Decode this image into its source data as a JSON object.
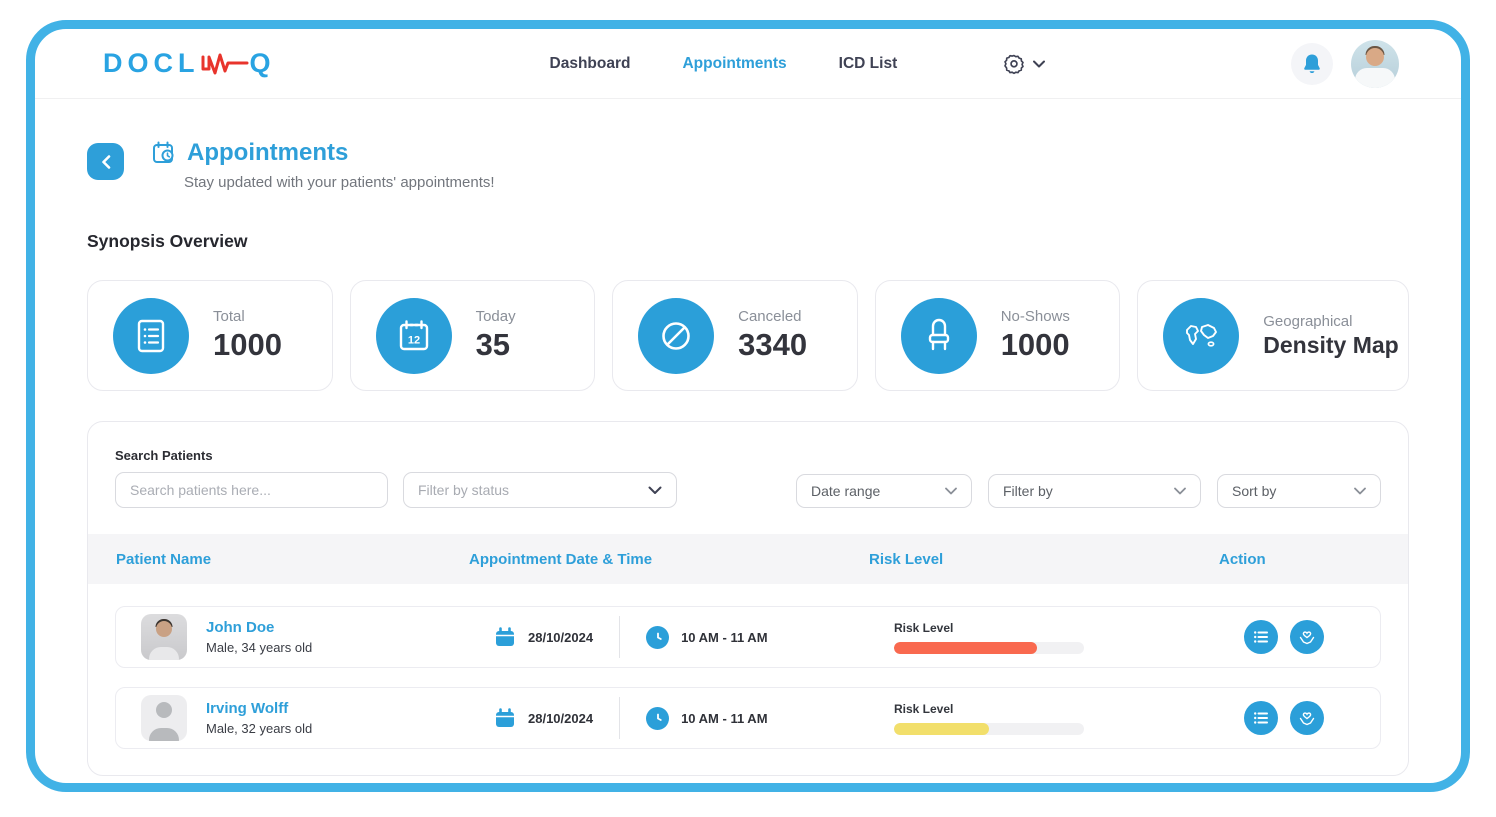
{
  "brand": {
    "name": "DOCLINQ",
    "logo_left": "DOCL",
    "logo_right": "Q"
  },
  "nav": {
    "items": [
      {
        "label": "Dashboard",
        "active": false
      },
      {
        "label": "Appointments",
        "active": true
      },
      {
        "label": "ICD List",
        "active": false
      }
    ]
  },
  "page": {
    "title": "Appointments",
    "subtitle": "Stay updated with your patients' appointments!"
  },
  "synopsis": {
    "heading": "Synopsis Overview",
    "cards": [
      {
        "label": "Total",
        "value": "1000",
        "icon": "list-document-icon"
      },
      {
        "label": "Today",
        "value": "35",
        "icon": "calendar-12-icon"
      },
      {
        "label": "Canceled",
        "value": "3340",
        "icon": "ban-icon"
      },
      {
        "label": "No-Shows",
        "value": "1000",
        "icon": "chair-icon"
      },
      {
        "label": "Geographical",
        "value": "Density Map",
        "icon": "world-map-icon"
      }
    ]
  },
  "filters": {
    "search_label": "Search Patients",
    "search_placeholder": "Search patients here...",
    "status_placeholder": "Filter by status",
    "date_range_label": "Date range",
    "filter_by_label": "Filter by",
    "sort_by_label": "Sort by"
  },
  "table": {
    "headers": [
      "Patient Name",
      "Appointment Date & Time",
      "Risk Level",
      "Action"
    ],
    "risk_label": "Risk Level",
    "rows": [
      {
        "name": "John Doe",
        "details": "Male, 34 years old",
        "date": "28/10/2024",
        "time": "10 AM - 11 AM",
        "risk_percent": 75,
        "risk_color": "#F9694F"
      },
      {
        "name": "Irving Wolff",
        "details": "Male, 32 years old",
        "date": "28/10/2024",
        "time": "10 AM - 11 AM",
        "risk_percent": 50,
        "risk_color": "#F2DF6B"
      }
    ]
  },
  "colors": {
    "accent": "#2E9FD9",
    "frame": "#41B2E6",
    "risk_high": "#F9694F",
    "risk_medium": "#F2DF6B",
    "logo_red": "#E8342C"
  }
}
